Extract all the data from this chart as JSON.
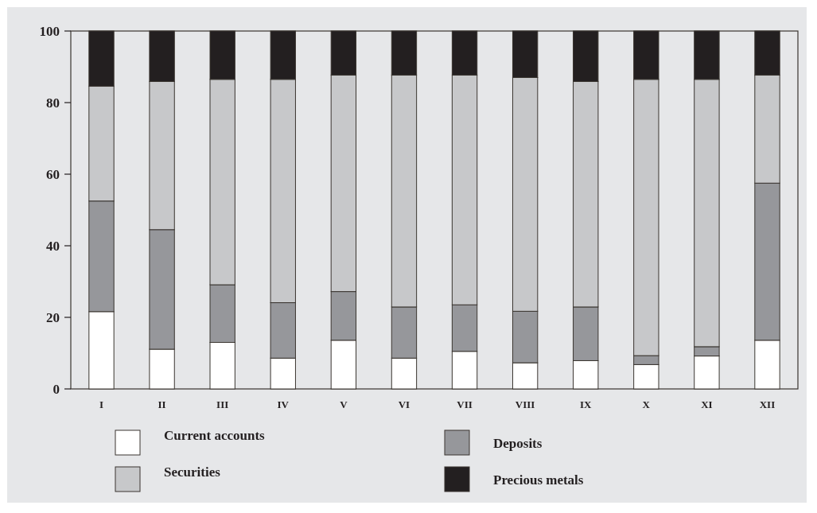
{
  "chart_data": {
    "type": "bar",
    "stacked": true,
    "categories": [
      "I",
      "II",
      "III",
      "IV",
      "V",
      "VI",
      "VII",
      "VIII",
      "IX",
      "X",
      "XI",
      "XII"
    ],
    "series": [
      {
        "name": "Current accounts",
        "color": "#ffffff",
        "values": [
          21.6,
          11.1,
          13.0,
          8.6,
          13.6,
          8.6,
          10.5,
          7.3,
          7.9,
          6.8,
          9.2,
          13.6
        ]
      },
      {
        "name": "Deposits",
        "color": "#96979b",
        "values": [
          30.9,
          33.4,
          16.1,
          15.5,
          13.6,
          14.3,
          13.0,
          14.4,
          15.0,
          2.5,
          2.6,
          43.9
        ]
      },
      {
        "name": "Securities",
        "color": "#c7c8ca",
        "values": [
          32.1,
          41.4,
          57.4,
          62.4,
          60.5,
          64.8,
          64.2,
          65.3,
          63.0,
          77.2,
          74.7,
          30.2
        ]
      },
      {
        "name": "Precious metals",
        "color": "#231f20",
        "values": [
          15.4,
          14.1,
          13.5,
          13.5,
          12.3,
          12.3,
          12.3,
          13.0,
          14.1,
          13.5,
          13.5,
          12.3
        ]
      }
    ],
    "ylim": [
      0,
      100
    ],
    "yticks": [
      0,
      20,
      40,
      60,
      80,
      100
    ],
    "legend": "bottom"
  }
}
